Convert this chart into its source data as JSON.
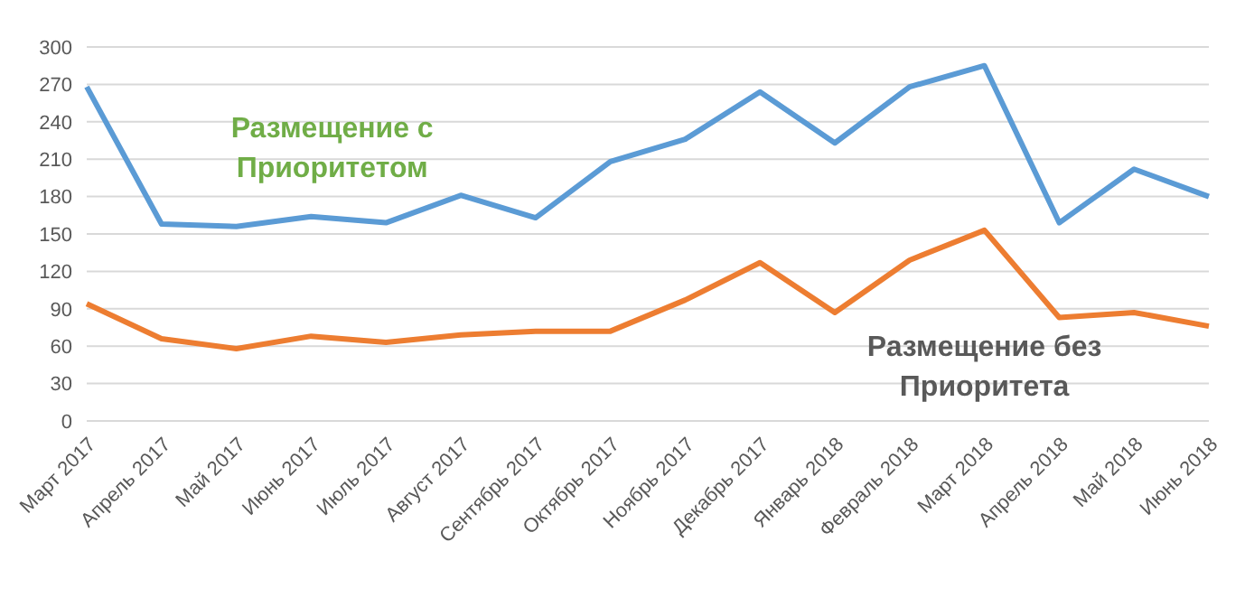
{
  "chart_data": {
    "type": "line",
    "categories": [
      "Март 2017",
      "Апрель 2017",
      "Май 2017",
      "Июнь 2017",
      "Июль 2017",
      "Август 2017",
      "Сентябрь 2017",
      "Октябрь 2017",
      "Ноябрь 2017",
      "Декабрь 2017",
      "Январь 2018",
      "Февраль 2018",
      "Март 2018",
      "Апрель 2018",
      "Май 2018",
      "Июнь 2018"
    ],
    "series": [
      {
        "name": "Размещение с Приоритетом",
        "color": "#5b9bd5",
        "values": [
          268,
          158,
          156,
          164,
          159,
          181,
          163,
          208,
          226,
          264,
          223,
          268,
          285,
          159,
          202,
          180
        ]
      },
      {
        "name": "Размещение без Приоритета",
        "color": "#ed7d31",
        "values": [
          94,
          66,
          58,
          68,
          63,
          69,
          72,
          72,
          97,
          127,
          87,
          129,
          153,
          83,
          87,
          76
        ]
      }
    ],
    "ylim": [
      0,
      300
    ],
    "yticks": [
      0,
      30,
      60,
      90,
      120,
      150,
      180,
      210,
      240,
      270,
      300
    ],
    "grid": "y",
    "marker": "none",
    "line_style": "solid"
  }
}
